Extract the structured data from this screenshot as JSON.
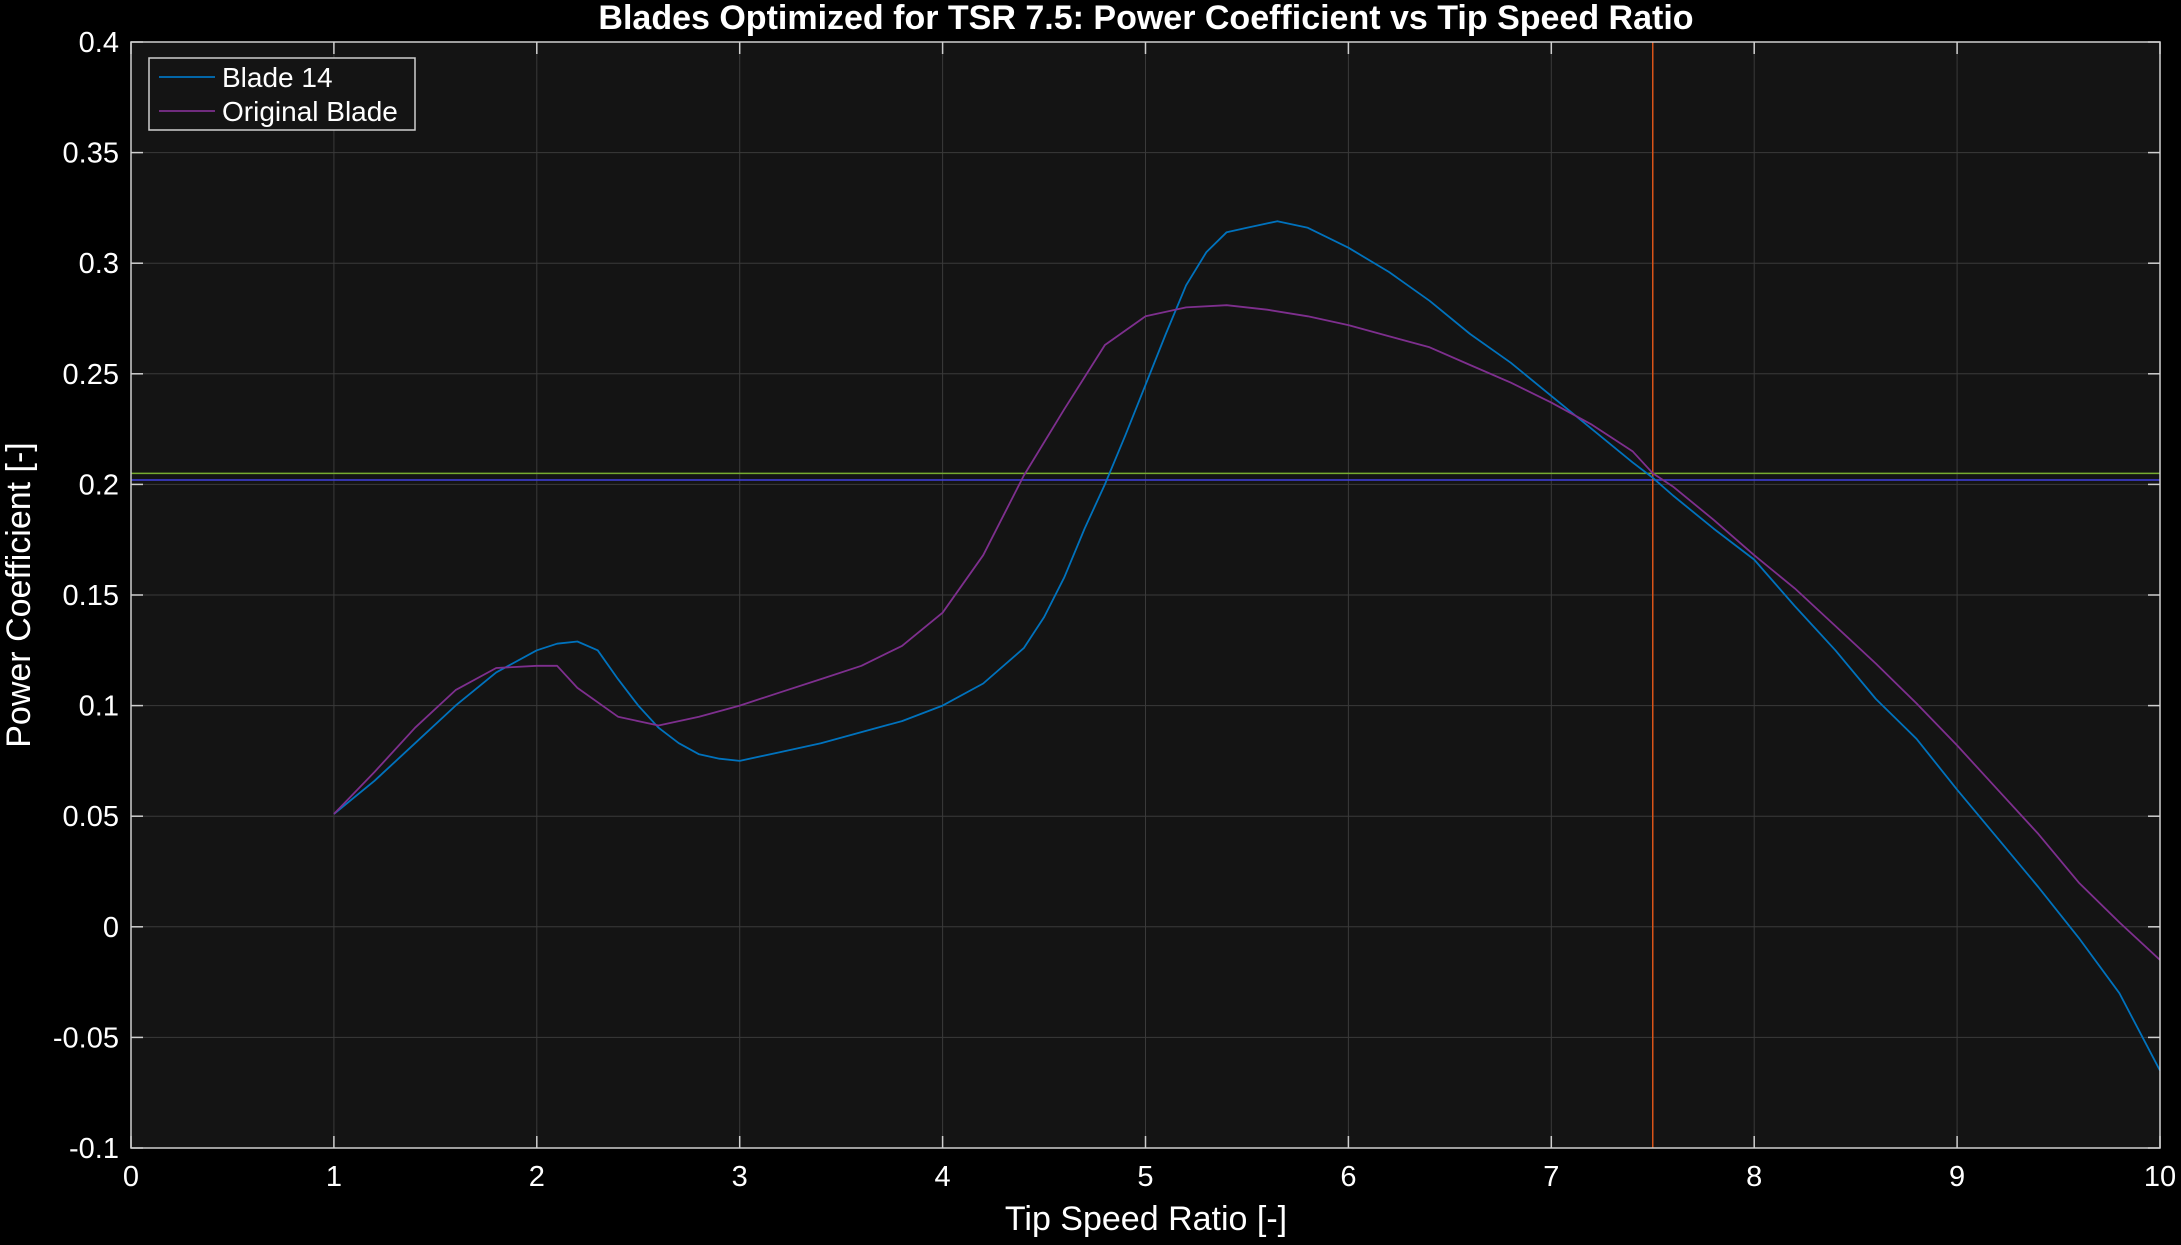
{
  "chart_data": {
    "type": "line",
    "title": "Blades Optimized for TSR 7.5: Power Coefficient vs Tip Speed Ratio",
    "xlabel": "Tip Speed Ratio [-]",
    "ylabel": "Power Coefficient [-]",
    "xlim": [
      0,
      10
    ],
    "ylim": [
      -0.1,
      0.4
    ],
    "xticks": [
      0,
      1,
      2,
      3,
      4,
      5,
      6,
      7,
      8,
      9,
      10
    ],
    "yticks": [
      -0.1,
      -0.05,
      0,
      0.05,
      0.1,
      0.15,
      0.2,
      0.25,
      0.3,
      0.35,
      0.4
    ],
    "ytick_labels": [
      "-0.1",
      "-0.05",
      "0",
      "0.05",
      "0.1",
      "0.15",
      "0.2",
      "0.25",
      "0.3",
      "0.35",
      "0.4"
    ],
    "grid": true,
    "legend_position": "top-left",
    "background": "#141414",
    "grid_color": "#3a3a3a",
    "series": [
      {
        "name": "Blade 14",
        "color": "#0072BD",
        "x": [
          1.0,
          1.2,
          1.4,
          1.6,
          1.8,
          2.0,
          2.1,
          2.2,
          2.3,
          2.4,
          2.5,
          2.6,
          2.7,
          2.8,
          2.9,
          3.0,
          3.2,
          3.4,
          3.6,
          3.8,
          4.0,
          4.2,
          4.4,
          4.5,
          4.6,
          4.7,
          4.8,
          4.9,
          5.0,
          5.1,
          5.2,
          5.3,
          5.4,
          5.5,
          5.6,
          5.65,
          5.8,
          6.0,
          6.2,
          6.4,
          6.6,
          6.8,
          7.0,
          7.2,
          7.4,
          7.5,
          7.6,
          7.8,
          8.0,
          8.2,
          8.4,
          8.6,
          8.8,
          9.0,
          9.2,
          9.4,
          9.6,
          9.8,
          10.0
        ],
        "y": [
          0.051,
          0.066,
          0.083,
          0.1,
          0.115,
          0.125,
          0.128,
          0.129,
          0.125,
          0.112,
          0.1,
          0.09,
          0.083,
          0.078,
          0.076,
          0.075,
          0.079,
          0.083,
          0.088,
          0.093,
          0.1,
          0.11,
          0.126,
          0.14,
          0.158,
          0.18,
          0.2,
          0.222,
          0.245,
          0.268,
          0.29,
          0.305,
          0.314,
          0.316,
          0.318,
          0.319,
          0.316,
          0.307,
          0.296,
          0.283,
          0.268,
          0.255,
          0.24,
          0.225,
          0.21,
          0.203,
          0.195,
          0.18,
          0.166,
          0.145,
          0.125,
          0.103,
          0.085,
          0.062,
          0.04,
          0.018,
          -0.005,
          -0.03,
          -0.065
        ]
      },
      {
        "name": "Original Blade",
        "color": "#7E2F8E",
        "x": [
          1.0,
          1.2,
          1.4,
          1.6,
          1.8,
          2.0,
          2.1,
          2.2,
          2.4,
          2.6,
          2.8,
          3.0,
          3.2,
          3.4,
          3.6,
          3.8,
          4.0,
          4.2,
          4.4,
          4.6,
          4.8,
          5.0,
          5.2,
          5.4,
          5.6,
          5.8,
          6.0,
          6.2,
          6.4,
          6.6,
          6.8,
          7.0,
          7.2,
          7.4,
          7.5,
          7.6,
          7.8,
          8.0,
          8.2,
          8.4,
          8.6,
          8.8,
          9.0,
          9.2,
          9.4,
          9.6,
          9.8,
          10.0
        ],
        "y": [
          0.051,
          0.07,
          0.09,
          0.107,
          0.117,
          0.118,
          0.118,
          0.108,
          0.095,
          0.091,
          0.095,
          0.1,
          0.106,
          0.112,
          0.118,
          0.127,
          0.142,
          0.168,
          0.204,
          0.234,
          0.263,
          0.276,
          0.28,
          0.281,
          0.279,
          0.276,
          0.272,
          0.267,
          0.262,
          0.254,
          0.246,
          0.237,
          0.227,
          0.215,
          0.205,
          0.199,
          0.184,
          0.168,
          0.153,
          0.136,
          0.119,
          0.101,
          0.082,
          0.062,
          0.042,
          0.02,
          0.002,
          -0.015
        ]
      }
    ],
    "reference_lines": [
      {
        "orientation": "horizontal",
        "value": 0.205,
        "color": "#77AC30"
      },
      {
        "orientation": "horizontal",
        "value": 0.202,
        "color": "#4040e0"
      },
      {
        "orientation": "vertical",
        "value": 7.5,
        "color": "#D95319"
      }
    ]
  }
}
